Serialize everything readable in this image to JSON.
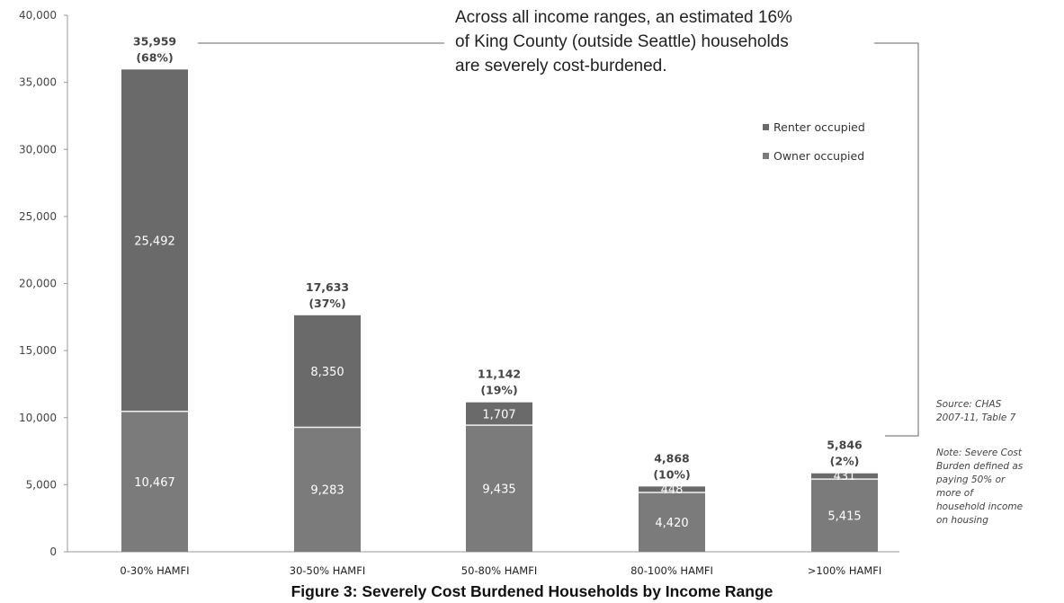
{
  "chart_data": {
    "type": "bar",
    "stacked": true,
    "categories": [
      "0-30% HAMFI",
      "30-50% HAMFI",
      "50-80% HAMFI",
      "80-100% HAMFI",
      ">100% HAMFI"
    ],
    "series": [
      {
        "name": "Owner occupied",
        "values": [
          10467,
          9283,
          9435,
          4420,
          5415
        ],
        "labels": [
          "10,467",
          "9,283",
          "9,435",
          "4,420",
          "5,415"
        ],
        "color": "#7b7b7b"
      },
      {
        "name": "Renter occupied",
        "values": [
          25492,
          8350,
          1707,
          448,
          431
        ],
        "labels": [
          "25,492",
          "8,350",
          "1,707",
          "448",
          "431"
        ],
        "color": "#6a6a6a"
      }
    ],
    "totals": [
      {
        "value": "35,959",
        "pct": "(68%)"
      },
      {
        "value": "17,633",
        "pct": "(37%)"
      },
      {
        "value": "11,142",
        "pct": "(19%)"
      },
      {
        "value": "4,868",
        "pct": "(10%)"
      },
      {
        "value": "5,846",
        "pct": "(2%)"
      }
    ],
    "ylim": [
      0,
      40000
    ],
    "yticks": [
      "0",
      "5,000",
      "10,000",
      "15,000",
      "20,000",
      "25,000",
      "30,000",
      "35,000",
      "40,000"
    ],
    "legend_position": "top-right",
    "grid": false
  },
  "annotation": {
    "lines": [
      "Across all income ranges, an estimated 16%",
      "of King County (outside Seattle) households",
      "are severely cost-burdened."
    ]
  },
  "legend": {
    "renter": "Renter occupied",
    "owner": "Owner occupied",
    "renter_color": "#6a6a6a",
    "owner_color": "#7b7b7b"
  },
  "source": {
    "line1": "Source: CHAS",
    "line2": "2007-11, Table 7"
  },
  "note": {
    "lines": [
      "Note: Severe Cost",
      "Burden defined as",
      "paying 50% or",
      "more of",
      "household income",
      "on housing"
    ]
  },
  "caption": "Figure 3: Severely Cost Burdened Households by Income Range"
}
